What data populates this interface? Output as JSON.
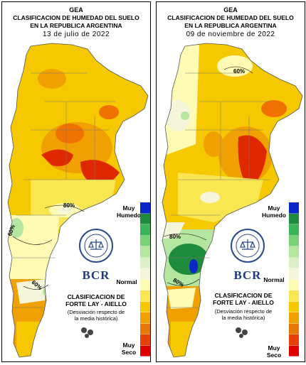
{
  "panels": [
    {
      "header": {
        "org": "GEA",
        "title_line1": "CLASIFICACION DE HUMEDAD DEL SUELO",
        "title_line2": "EN LA REPUBLICA ARGENTINA",
        "date": "13 de julio de 2022"
      },
      "contour_labels": [
        "80%",
        "60%",
        "60%"
      ],
      "legend": {
        "top": "Muy\nHumedo",
        "middle": "Normal",
        "bottom": "Muy\nSeco"
      },
      "logo_text": "BCR",
      "classification": {
        "line1": "CLASIFICACION DE",
        "line2": "FORTE LAY - AIELLO"
      },
      "deviation": {
        "line1": "(Desviación respecto de",
        "line2": "la media histórica)"
      }
    },
    {
      "header": {
        "org": "GEA",
        "title_line1": "CLASIFICACION DE HUMEDAD DEL SUELO",
        "title_line2": "EN LA REPUBLICA ARGENTINA",
        "date": "09 de noviembre de 2022"
      },
      "contour_labels": [
        "60%",
        "80%",
        "80%"
      ],
      "legend": {
        "top": "Muy\nHumedo",
        "middle": "Normal",
        "bottom": "Muy\nSeco"
      },
      "logo_text": "BCR",
      "classification": {
        "line1": "CLASIFICACION DE",
        "line2": "FORTE LAY - AIELLO"
      },
      "deviation": {
        "line1": "(Desviación respecto de",
        "line2": "la media histórica)"
      }
    }
  ],
  "legend_colors": [
    "#0a28c8",
    "#1e8c3c",
    "#3cb45a",
    "#78d278",
    "#b4e6a0",
    "#dcf0c8",
    "#f5f5dc",
    "#fffab4",
    "#fae650",
    "#f5c800",
    "#f0a000",
    "#e87800",
    "#e84000",
    "#e00000"
  ],
  "map_colors": {
    "very_dry": "#e02800",
    "dry": "#f07000",
    "moderately_dry": "#f0a000",
    "slightly_dry": "#f5c800",
    "yellow": "#fae650",
    "pale": "#fffab4",
    "normal": "#f5f5dc",
    "wet": "#b4e6a0",
    "very_wet": "#1e8c3c",
    "extreme_wet": "#0a28c8"
  }
}
